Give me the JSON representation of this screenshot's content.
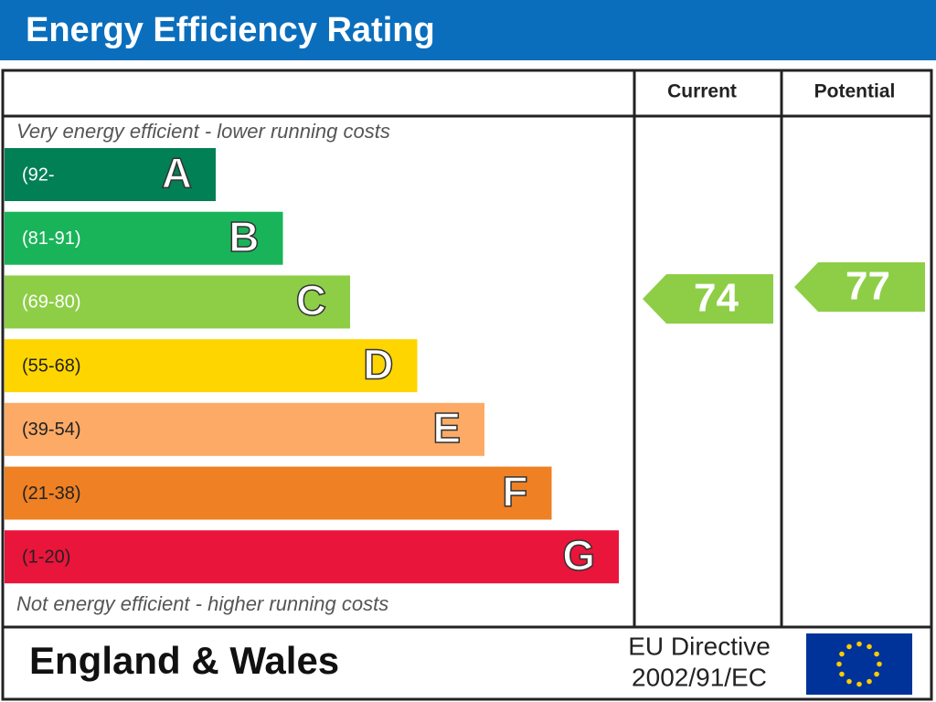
{
  "header": {
    "title": "Energy Efficiency Rating"
  },
  "columns": [
    "Current",
    "Potential"
  ],
  "top_note": "Very energy efficient - lower running costs",
  "bottom_note": "Not energy efficient - higher running costs",
  "bands": [
    {
      "range": "(92-",
      "letter": "A",
      "color": "#008054"
    },
    {
      "range": "(81-91)",
      "letter": "B",
      "color": "#19b459"
    },
    {
      "range": "(69-80)",
      "letter": "C",
      "color": "#8dce46"
    },
    {
      "range": "(55-68)",
      "letter": "D",
      "color": "#ffd500"
    },
    {
      "range": "(39-54)",
      "letter": "E",
      "color": "#fcaa65"
    },
    {
      "range": "(21-38)",
      "letter": "F",
      "color": "#ef8023"
    },
    {
      "range": "(1-20)",
      "letter": "G",
      "color": "#e9153b"
    }
  ],
  "current": {
    "value": 74,
    "color": "#8dce46"
  },
  "potential": {
    "value": 77,
    "color": "#8dce46"
  },
  "footer": {
    "region": "England & Wales",
    "directive": [
      "EU Directive",
      "2002/91/EC"
    ]
  }
}
